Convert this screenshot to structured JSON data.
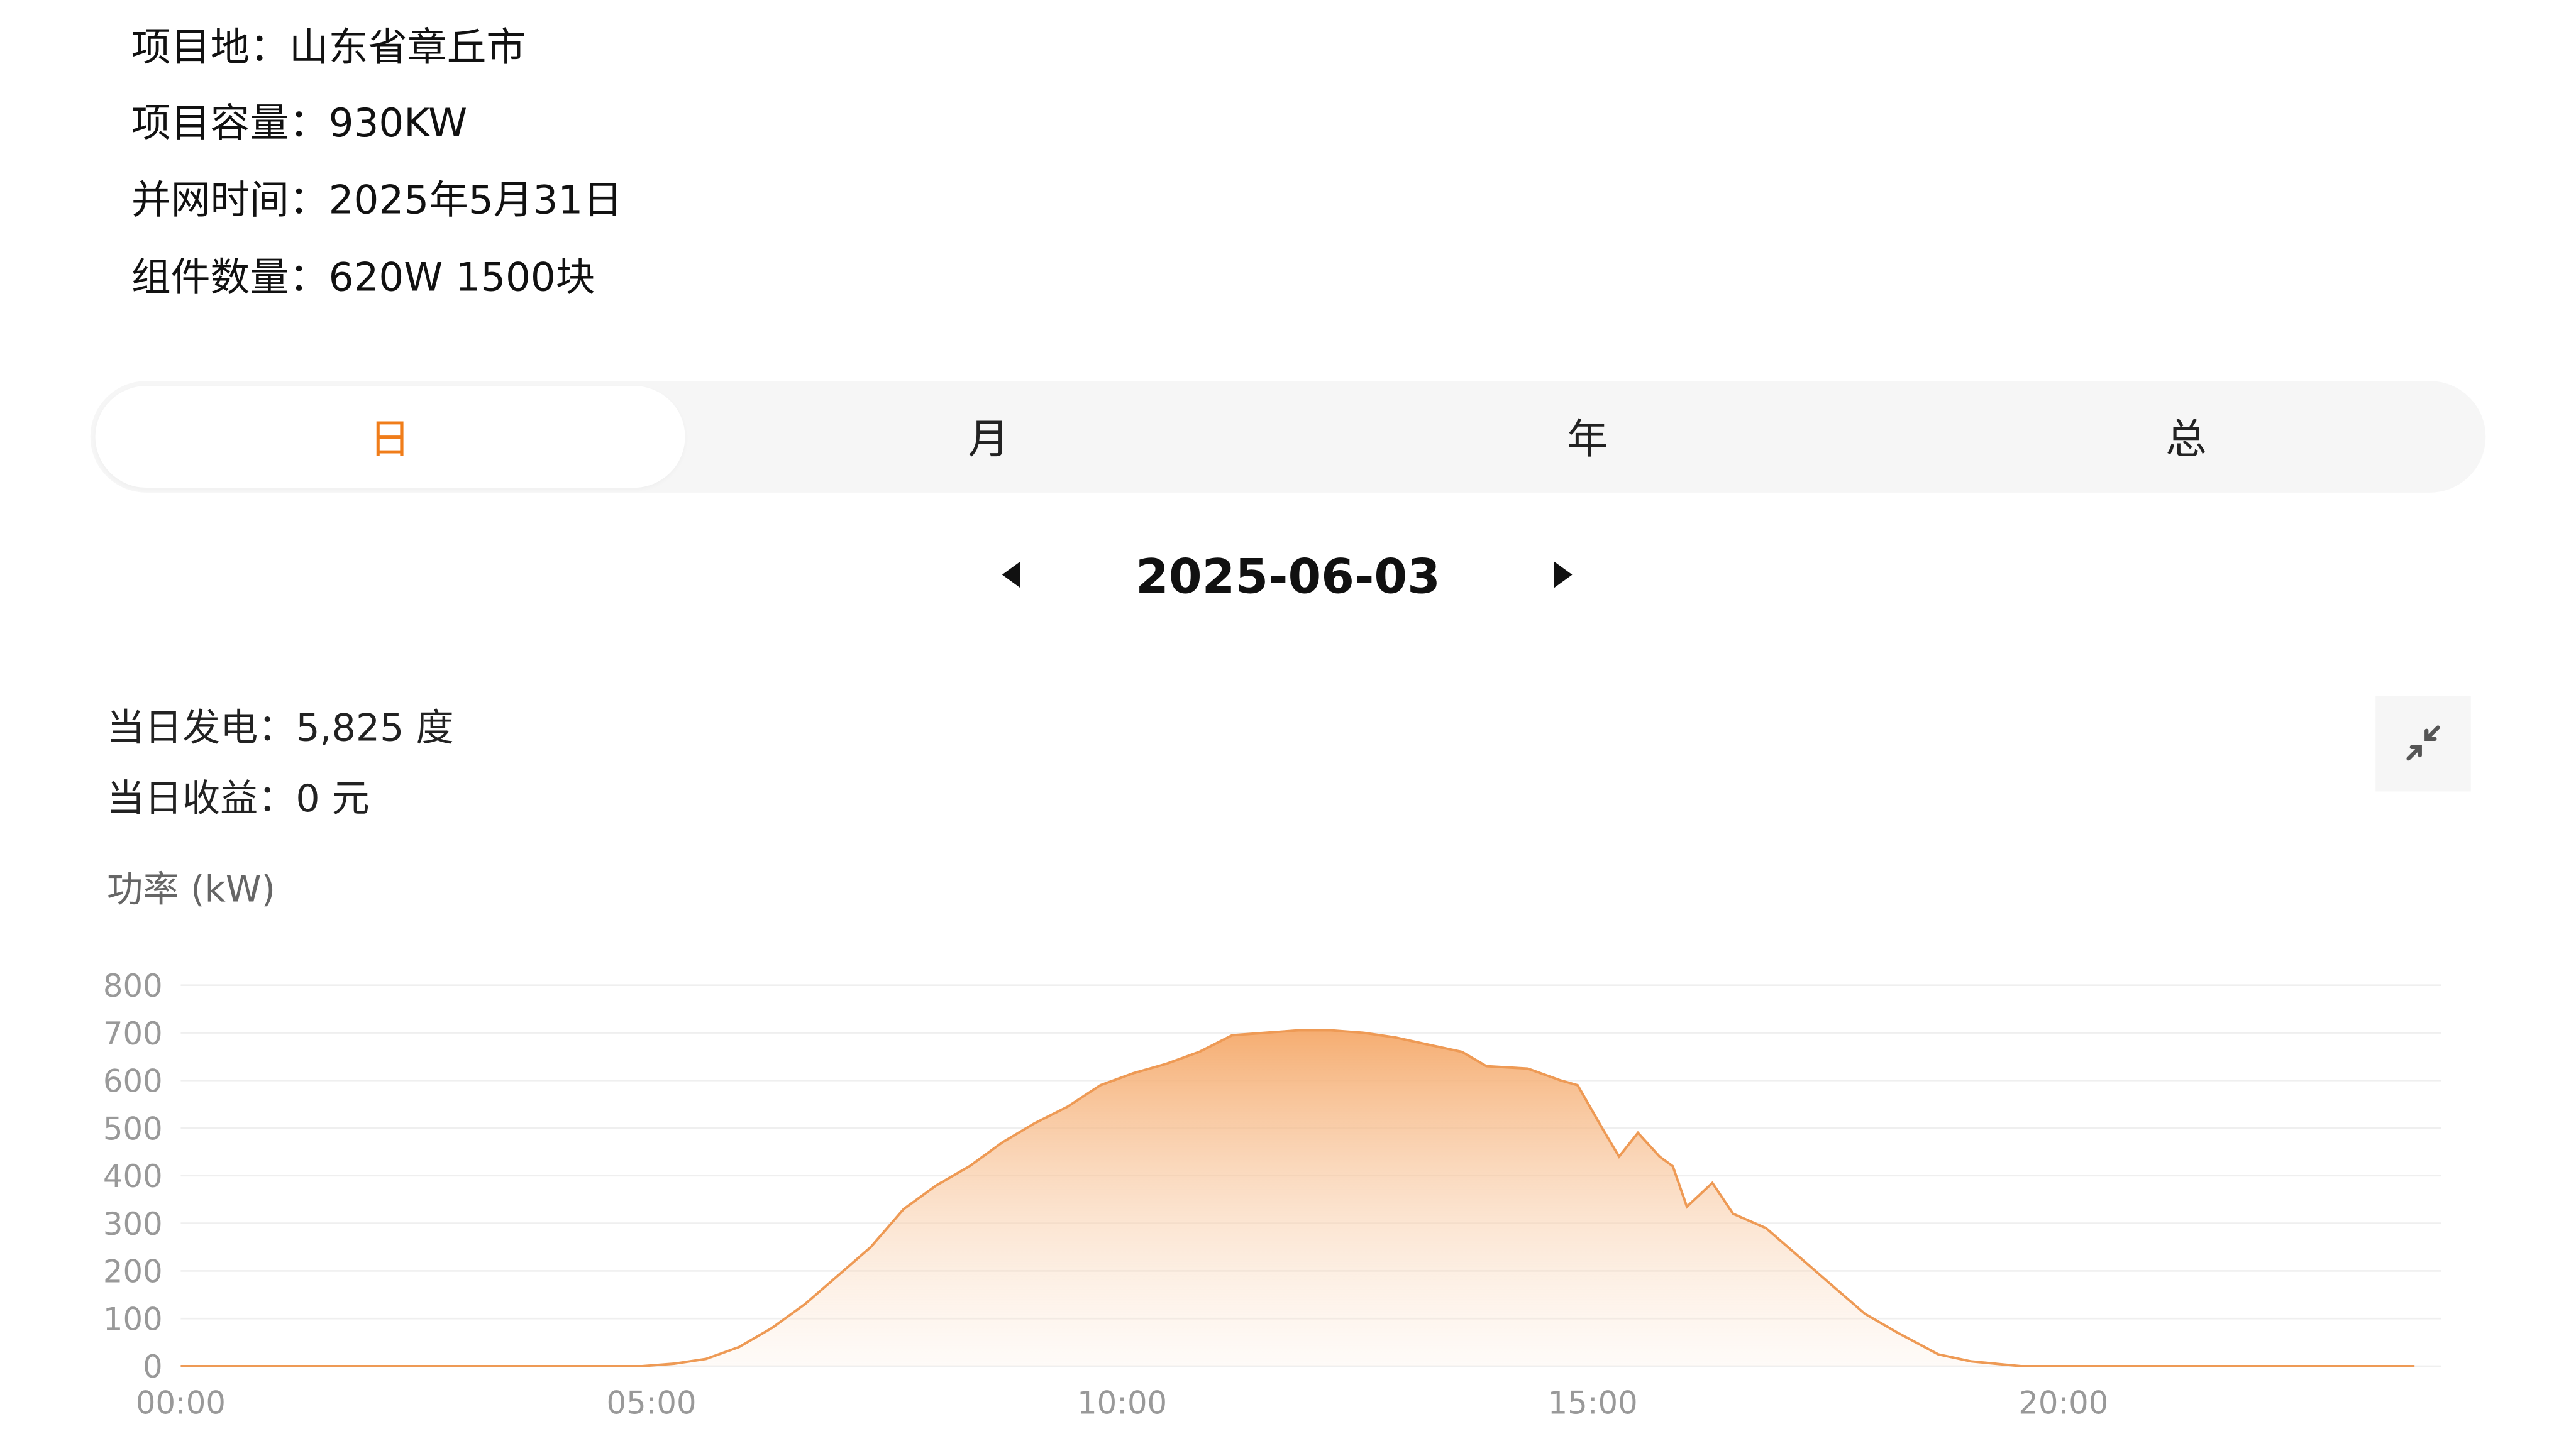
{
  "project": {
    "location": "项目地：山东省章丘市",
    "capacity": "项目容量：930KW",
    "grid_date": "并网时间：2025年5月31日",
    "modules": "组件数量：620W 1500块"
  },
  "tabs": [
    {
      "label": "日",
      "active": true
    },
    {
      "label": "月",
      "active": false
    },
    {
      "label": "年",
      "active": false
    },
    {
      "label": "总",
      "active": false
    }
  ],
  "date_nav": {
    "date": "2025-06-03",
    "prev_icon": "caret-left-icon",
    "next_icon": "caret-right-icon"
  },
  "stats": {
    "daily_generation": "当日发电：5,825 度",
    "daily_revenue": "当日收益：0 元"
  },
  "collapse_icon": "collapse-arrows-icon",
  "colors": {
    "accent": "#f07d1a",
    "area_top": "#f5a96a",
    "line": "#ee9a55"
  },
  "chart_data": {
    "type": "area",
    "ylabel": "功率 (kW)",
    "ylim": [
      0,
      800
    ],
    "yticks": [
      0,
      100,
      200,
      300,
      400,
      500,
      600,
      700,
      800
    ],
    "xlim_hours": [
      0,
      24
    ],
    "xticks": [
      "00:00",
      "05:00",
      "10:00",
      "15:00",
      "20:00"
    ],
    "grid": true,
    "series": [
      {
        "x_hours": [
          0,
          4.9,
          5.24,
          5.58,
          5.93,
          6.28,
          6.63,
          6.98,
          7.33,
          7.68,
          8.03,
          8.38,
          8.73,
          9.07,
          9.42,
          9.77,
          10.12,
          10.47,
          10.82,
          11.17,
          11.52,
          11.87,
          12.22,
          12.57,
          12.91,
          13.26,
          13.61,
          13.87,
          14.31,
          14.66,
          14.84,
          15.1,
          15.28,
          15.48,
          15.71,
          15.85,
          16.0,
          16.27,
          16.49,
          16.84,
          17.19,
          17.54,
          17.89,
          18.24,
          18.67,
          19.02,
          19.55,
          23.73
        ],
        "values": [
          0,
          0,
          5,
          15,
          40,
          80,
          130,
          190,
          250,
          330,
          380,
          420,
          470,
          510,
          545,
          590,
          615,
          635,
          660,
          695,
          700,
          705,
          705,
          700,
          690,
          675,
          660,
          630,
          625,
          600,
          590,
          500,
          440,
          490,
          440,
          420,
          335,
          385,
          320,
          290,
          230,
          170,
          110,
          70,
          25,
          10,
          0,
          0
        ]
      }
    ]
  }
}
